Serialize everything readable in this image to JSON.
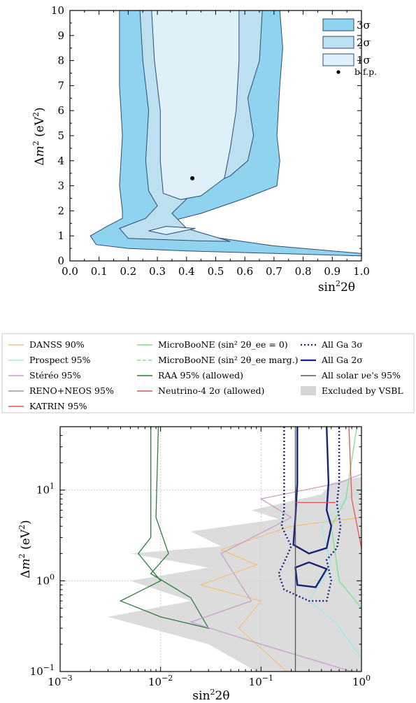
{
  "chart_data": [
    {
      "type": "contour",
      "xlabel": "sin²2θ",
      "ylabel": "Δm² (eV²)",
      "xlim": [
        0.0,
        1.0
      ],
      "ylim": [
        0,
        10
      ],
      "xticks": [
        "0.0",
        "0.1",
        "0.2",
        "0.3",
        "0.4",
        "0.5",
        "0.6",
        "0.7",
        "0.8",
        "0.9",
        "1.0"
      ],
      "yticks": [
        "0",
        "1",
        "2",
        "3",
        "4",
        "5",
        "6",
        "7",
        "8",
        "9",
        "10"
      ],
      "grid": false,
      "legend_position": "top-right",
      "legend": [
        "3σ",
        "2σ",
        "1σ",
        "b.f.p."
      ],
      "colors": {
        "3σ": "#8fd3ef",
        "2σ": "#bde0f1",
        "1σ": "#dff1f8",
        "outline": "#2f4a73"
      },
      "best_fit_point": {
        "x": 0.42,
        "y": 3.3
      },
      "contours": [
        {
          "level": "3σ",
          "left": [
            [
              0.17,
              10
            ],
            [
              0.17,
              7
            ],
            [
              0.18,
              5
            ],
            [
              0.17,
              3
            ],
            [
              0.18,
              2
            ],
            [
              0.18,
              1.7
            ],
            [
              0.13,
              1.4
            ],
            [
              0.07,
              1.0
            ],
            [
              0.09,
              0.65
            ],
            [
              0.2,
              0.5
            ],
            [
              0.4,
              0.4
            ],
            [
              0.7,
              0.3
            ],
            [
              1.0,
              0.2
            ]
          ],
          "right": [
            [
              0.72,
              10
            ],
            [
              0.73,
              8.5
            ],
            [
              0.72,
              7
            ],
            [
              0.71,
              5
            ],
            [
              0.72,
              4
            ],
            [
              0.71,
              3
            ],
            [
              0.6,
              2.5
            ],
            [
              0.45,
              1.9
            ],
            [
              0.35,
              1.6
            ],
            [
              0.4,
              1.1
            ],
            [
              0.7,
              0.6
            ],
            [
              1.0,
              0.3
            ]
          ]
        },
        {
          "level": "2σ",
          "left": [
            [
              0.24,
              10
            ],
            [
              0.25,
              8
            ],
            [
              0.27,
              6
            ],
            [
              0.26,
              4
            ],
            [
              0.27,
              2.8
            ],
            [
              0.3,
              2.2
            ],
            [
              0.26,
              1.7
            ],
            [
              0.17,
              1.3
            ],
            [
              0.2,
              0.9
            ],
            [
              0.45,
              0.8
            ],
            [
              0.55,
              0.78
            ]
          ],
          "right": [
            [
              0.66,
              10
            ],
            [
              0.65,
              8
            ],
            [
              0.61,
              6.5
            ],
            [
              0.63,
              5
            ],
            [
              0.61,
              4
            ],
            [
              0.55,
              3.4
            ],
            [
              0.42,
              2.7
            ],
            [
              0.35,
              1.9
            ],
            [
              0.4,
              1.3
            ],
            [
              0.55,
              0.78
            ]
          ]
        },
        {
          "level": "1σ",
          "left": [
            [
              0.28,
              10
            ],
            [
              0.29,
              8
            ],
            [
              0.31,
              6
            ],
            [
              0.31,
              4
            ],
            [
              0.32,
              2.7
            ],
            [
              0.38,
              2.45
            ],
            [
              0.45,
              2.6
            ]
          ],
          "right": [
            [
              0.58,
              10
            ],
            [
              0.58,
              8
            ],
            [
              0.57,
              6
            ],
            [
              0.55,
              4.5
            ],
            [
              0.53,
              3.3
            ],
            [
              0.45,
              2.6
            ]
          ],
          "island": [
            [
              0.27,
              1.2
            ],
            [
              0.33,
              1.38
            ],
            [
              0.43,
              1.3
            ],
            [
              0.33,
              1.05
            ]
          ]
        }
      ]
    },
    {
      "type": "contour",
      "xlabel": "sin²2θ",
      "ylabel": "Δm² (eV²)",
      "xscale": "log",
      "yscale": "log",
      "xlim": [
        0.001,
        1.0
      ],
      "ylim": [
        0.1,
        50
      ],
      "xticks": [
        {
          "base": "10",
          "exp": "−3"
        },
        {
          "base": "10",
          "exp": "−2"
        },
        {
          "base": "10",
          "exp": "−1"
        },
        {
          "base": "10",
          "exp": "0"
        }
      ],
      "yticks": [
        {
          "base": "10",
          "exp": "−1"
        },
        {
          "base": "10",
          "exp": "0"
        },
        {
          "base": "10",
          "exp": "1"
        }
      ],
      "grid": true,
      "legend_position": "above",
      "legend": [
        {
          "label": "DANSS 90%",
          "color": "#f2c27a",
          "style": "solid"
        },
        {
          "label": "Prospect 95%",
          "color": "#9fe8ea",
          "style": "solid"
        },
        {
          "label": "Stéréo 95%",
          "color": "#c7a0c9",
          "style": "solid"
        },
        {
          "label": "RENO+NEOS 95%",
          "color": "#999999",
          "style": "solid"
        },
        {
          "label": "KATRIN 95%",
          "color": "#e05555",
          "style": "solid"
        },
        {
          "label": "MicroBooNE (sin² 2θ_ee = 0)",
          "color": "#7be38b",
          "style": "solid"
        },
        {
          "label": "MicroBooNE (sin² 2θ_ee marg.)",
          "color": "#7be38b",
          "style": "dashed"
        },
        {
          "label": "RAA 95% (allowed)",
          "color": "#2e7d3c",
          "style": "solid"
        },
        {
          "label": "Neutrino-4 2σ (allowed)",
          "color": "#e05555",
          "style": "solid"
        },
        {
          "label": "All Ga 3σ",
          "color": "#16237a",
          "style": "dotted"
        },
        {
          "label": "All Ga 2σ",
          "color": "#16237a",
          "style": "solid"
        },
        {
          "label": "All solar νe's 95%",
          "color": "#555555",
          "style": "solid"
        },
        {
          "label": "Excluded by VSBL",
          "color": "#d6d6d6",
          "style": "fill"
        }
      ],
      "curves": [
        {
          "name": "All Ga 3σ",
          "points": [
            [
              0.17,
              50
            ],
            [
              0.17,
              6
            ],
            [
              0.16,
              4
            ],
            [
              0.2,
              2.4
            ],
            [
              0.17,
              1.6
            ],
            [
              0.15,
              1.2
            ],
            [
              0.17,
              0.8
            ],
            [
              0.3,
              0.6
            ],
            [
              0.45,
              0.6
            ],
            [
              0.5,
              1.0
            ],
            [
              0.45,
              1.7
            ],
            [
              0.57,
              2.3
            ],
            [
              0.62,
              4
            ],
            [
              0.57,
              7
            ],
            [
              0.6,
              12
            ],
            [
              0.6,
              50
            ]
          ]
        },
        {
          "name": "All Ga 2σ main",
          "points": [
            [
              0.23,
              50
            ],
            [
              0.23,
              12
            ],
            [
              0.22,
              5
            ],
            [
              0.21,
              2.5
            ],
            [
              0.3,
              2.0
            ],
            [
              0.45,
              2.3
            ],
            [
              0.5,
              4
            ],
            [
              0.45,
              6
            ],
            [
              0.47,
              12
            ],
            [
              0.45,
              50
            ]
          ]
        },
        {
          "name": "All Ga 2σ island",
          "points": [
            [
              0.22,
              1.4
            ],
            [
              0.3,
              1.6
            ],
            [
              0.45,
              1.35
            ],
            [
              0.35,
              0.85
            ],
            [
              0.23,
              0.9
            ]
          ]
        },
        {
          "name": "All solar νe's 95%",
          "points": [
            [
              0.22,
              0.1
            ],
            [
              0.22,
              50
            ]
          ]
        },
        {
          "name": "RAA 95% (allowed)",
          "points": [
            [
              0.008,
              50
            ],
            [
              0.008,
              3
            ],
            [
              0.006,
              2
            ],
            [
              0.01,
              1
            ],
            [
              0.004,
              0.6
            ],
            [
              0.01,
              0.4
            ],
            [
              0.03,
              0.3
            ],
            [
              0.02,
              0.65
            ],
            [
              0.008,
              1.2
            ],
            [
              0.012,
              2
            ],
            [
              0.009,
              5
            ],
            [
              0.0095,
              50
            ]
          ]
        },
        {
          "name": "DANSS 90%",
          "points": [
            [
              0.18,
              0.1
            ],
            [
              0.06,
              0.3
            ],
            [
              0.1,
              0.6
            ],
            [
              0.025,
              0.9
            ],
            [
              0.09,
              1.5
            ],
            [
              0.04,
              2.2
            ],
            [
              0.2,
              4
            ],
            [
              1.0,
              5
            ]
          ]
        },
        {
          "name": "Stéréo 95%",
          "points": [
            [
              0.8,
              0.1
            ],
            [
              0.1,
              0.2
            ],
            [
              0.02,
              0.35
            ],
            [
              0.08,
              0.6
            ],
            [
              0.04,
              2
            ],
            [
              0.2,
              5
            ],
            [
              0.1,
              8
            ],
            [
              0.6,
              12
            ],
            [
              1.0,
              15
            ]
          ]
        },
        {
          "name": "Prospect 95%",
          "points": [
            [
              1.0,
              0.14
            ],
            [
              0.55,
              0.35
            ],
            [
              0.3,
              0.6
            ],
            [
              0.5,
              1.5
            ],
            [
              0.4,
              4
            ],
            [
              0.7,
              8
            ],
            [
              1.0,
              10
            ]
          ]
        },
        {
          "name": "MicroBooNE (sin² 2θ_ee = 0)",
          "points": [
            [
              1.0,
              0.5
            ],
            [
              0.6,
              1.0
            ],
            [
              0.5,
              4
            ],
            [
              0.7,
              8
            ],
            [
              0.9,
              50
            ]
          ]
        },
        {
          "name": "KATRIN 95%",
          "points": [
            [
              1.0,
              2.3
            ],
            [
              0.8,
              8
            ],
            [
              0.75,
              50
            ]
          ]
        },
        {
          "name": "Neutrino-4 2σ (allowed)",
          "points": [
            [
              0.22,
              7.3
            ],
            [
              0.55,
              7.3
            ]
          ]
        },
        {
          "name": "Excluded by VSBL",
          "points": [
            [
              1.0,
              0.1
            ],
            [
              0.09,
              0.1
            ],
            [
              0.03,
              0.2
            ],
            [
              0.003,
              0.4
            ],
            [
              0.02,
              0.6
            ],
            [
              0.005,
              1.0
            ],
            [
              0.03,
              1.4
            ],
            [
              0.005,
              2.0
            ],
            [
              0.04,
              2.4
            ],
            [
              0.02,
              3.5
            ],
            [
              0.15,
              4.8
            ],
            [
              0.08,
              6
            ],
            [
              0.4,
              9
            ],
            [
              0.5,
              12
            ],
            [
              1.0,
              14
            ]
          ]
        }
      ]
    }
  ]
}
